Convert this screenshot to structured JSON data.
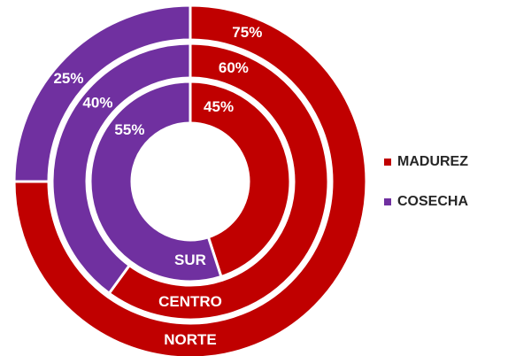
{
  "chart_data": {
    "type": "donut",
    "categories": [
      "NORTE",
      "CENTRO",
      "SUR"
    ],
    "series": [
      {
        "name": "MADUREZ",
        "color": "#c00000",
        "values": [
          75,
          60,
          45
        ],
        "value_labels": [
          "75%",
          "60%",
          "45%"
        ]
      },
      {
        "name": "COSECHA",
        "color": "#7030a0",
        "values": [
          25,
          40,
          55
        ],
        "value_labels": [
          "25%",
          "40%",
          "55%"
        ]
      }
    ],
    "legend": "right"
  }
}
